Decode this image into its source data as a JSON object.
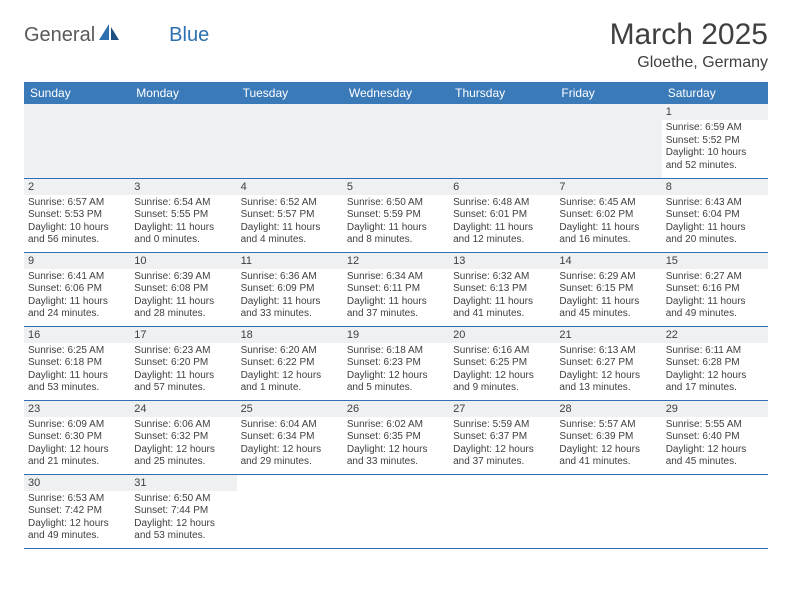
{
  "logo": {
    "text1": "General",
    "text2": "Blue"
  },
  "title": "March 2025",
  "location": "Gloethe, Germany",
  "colors": {
    "header_bg": "#3a7ab8",
    "header_fg": "#ffffff",
    "daynum_bg": "#eef0f2",
    "border": "#2e6fb0",
    "text": "#404040",
    "logo_gray": "#5a5a5a",
    "logo_blue": "#2e6fb0"
  },
  "daynames": [
    "Sunday",
    "Monday",
    "Tuesday",
    "Wednesday",
    "Thursday",
    "Friday",
    "Saturday"
  ],
  "weeks": [
    [
      null,
      null,
      null,
      null,
      null,
      null,
      {
        "n": "1",
        "sr": "Sunrise: 6:59 AM",
        "ss": "Sunset: 5:52 PM",
        "dl": "Daylight: 10 hours and 52 minutes."
      }
    ],
    [
      {
        "n": "2",
        "sr": "Sunrise: 6:57 AM",
        "ss": "Sunset: 5:53 PM",
        "dl": "Daylight: 10 hours and 56 minutes."
      },
      {
        "n": "3",
        "sr": "Sunrise: 6:54 AM",
        "ss": "Sunset: 5:55 PM",
        "dl": "Daylight: 11 hours and 0 minutes."
      },
      {
        "n": "4",
        "sr": "Sunrise: 6:52 AM",
        "ss": "Sunset: 5:57 PM",
        "dl": "Daylight: 11 hours and 4 minutes."
      },
      {
        "n": "5",
        "sr": "Sunrise: 6:50 AM",
        "ss": "Sunset: 5:59 PM",
        "dl": "Daylight: 11 hours and 8 minutes."
      },
      {
        "n": "6",
        "sr": "Sunrise: 6:48 AM",
        "ss": "Sunset: 6:01 PM",
        "dl": "Daylight: 11 hours and 12 minutes."
      },
      {
        "n": "7",
        "sr": "Sunrise: 6:45 AM",
        "ss": "Sunset: 6:02 PM",
        "dl": "Daylight: 11 hours and 16 minutes."
      },
      {
        "n": "8",
        "sr": "Sunrise: 6:43 AM",
        "ss": "Sunset: 6:04 PM",
        "dl": "Daylight: 11 hours and 20 minutes."
      }
    ],
    [
      {
        "n": "9",
        "sr": "Sunrise: 6:41 AM",
        "ss": "Sunset: 6:06 PM",
        "dl": "Daylight: 11 hours and 24 minutes."
      },
      {
        "n": "10",
        "sr": "Sunrise: 6:39 AM",
        "ss": "Sunset: 6:08 PM",
        "dl": "Daylight: 11 hours and 28 minutes."
      },
      {
        "n": "11",
        "sr": "Sunrise: 6:36 AM",
        "ss": "Sunset: 6:09 PM",
        "dl": "Daylight: 11 hours and 33 minutes."
      },
      {
        "n": "12",
        "sr": "Sunrise: 6:34 AM",
        "ss": "Sunset: 6:11 PM",
        "dl": "Daylight: 11 hours and 37 minutes."
      },
      {
        "n": "13",
        "sr": "Sunrise: 6:32 AM",
        "ss": "Sunset: 6:13 PM",
        "dl": "Daylight: 11 hours and 41 minutes."
      },
      {
        "n": "14",
        "sr": "Sunrise: 6:29 AM",
        "ss": "Sunset: 6:15 PM",
        "dl": "Daylight: 11 hours and 45 minutes."
      },
      {
        "n": "15",
        "sr": "Sunrise: 6:27 AM",
        "ss": "Sunset: 6:16 PM",
        "dl": "Daylight: 11 hours and 49 minutes."
      }
    ],
    [
      {
        "n": "16",
        "sr": "Sunrise: 6:25 AM",
        "ss": "Sunset: 6:18 PM",
        "dl": "Daylight: 11 hours and 53 minutes."
      },
      {
        "n": "17",
        "sr": "Sunrise: 6:23 AM",
        "ss": "Sunset: 6:20 PM",
        "dl": "Daylight: 11 hours and 57 minutes."
      },
      {
        "n": "18",
        "sr": "Sunrise: 6:20 AM",
        "ss": "Sunset: 6:22 PM",
        "dl": "Daylight: 12 hours and 1 minute."
      },
      {
        "n": "19",
        "sr": "Sunrise: 6:18 AM",
        "ss": "Sunset: 6:23 PM",
        "dl": "Daylight: 12 hours and 5 minutes."
      },
      {
        "n": "20",
        "sr": "Sunrise: 6:16 AM",
        "ss": "Sunset: 6:25 PM",
        "dl": "Daylight: 12 hours and 9 minutes."
      },
      {
        "n": "21",
        "sr": "Sunrise: 6:13 AM",
        "ss": "Sunset: 6:27 PM",
        "dl": "Daylight: 12 hours and 13 minutes."
      },
      {
        "n": "22",
        "sr": "Sunrise: 6:11 AM",
        "ss": "Sunset: 6:28 PM",
        "dl": "Daylight: 12 hours and 17 minutes."
      }
    ],
    [
      {
        "n": "23",
        "sr": "Sunrise: 6:09 AM",
        "ss": "Sunset: 6:30 PM",
        "dl": "Daylight: 12 hours and 21 minutes."
      },
      {
        "n": "24",
        "sr": "Sunrise: 6:06 AM",
        "ss": "Sunset: 6:32 PM",
        "dl": "Daylight: 12 hours and 25 minutes."
      },
      {
        "n": "25",
        "sr": "Sunrise: 6:04 AM",
        "ss": "Sunset: 6:34 PM",
        "dl": "Daylight: 12 hours and 29 minutes."
      },
      {
        "n": "26",
        "sr": "Sunrise: 6:02 AM",
        "ss": "Sunset: 6:35 PM",
        "dl": "Daylight: 12 hours and 33 minutes."
      },
      {
        "n": "27",
        "sr": "Sunrise: 5:59 AM",
        "ss": "Sunset: 6:37 PM",
        "dl": "Daylight: 12 hours and 37 minutes."
      },
      {
        "n": "28",
        "sr": "Sunrise: 5:57 AM",
        "ss": "Sunset: 6:39 PM",
        "dl": "Daylight: 12 hours and 41 minutes."
      },
      {
        "n": "29",
        "sr": "Sunrise: 5:55 AM",
        "ss": "Sunset: 6:40 PM",
        "dl": "Daylight: 12 hours and 45 minutes."
      }
    ],
    [
      {
        "n": "30",
        "sr": "Sunrise: 6:53 AM",
        "ss": "Sunset: 7:42 PM",
        "dl": "Daylight: 12 hours and 49 minutes."
      },
      {
        "n": "31",
        "sr": "Sunrise: 6:50 AM",
        "ss": "Sunset: 7:44 PM",
        "dl": "Daylight: 12 hours and 53 minutes."
      },
      null,
      null,
      null,
      null,
      null
    ]
  ]
}
